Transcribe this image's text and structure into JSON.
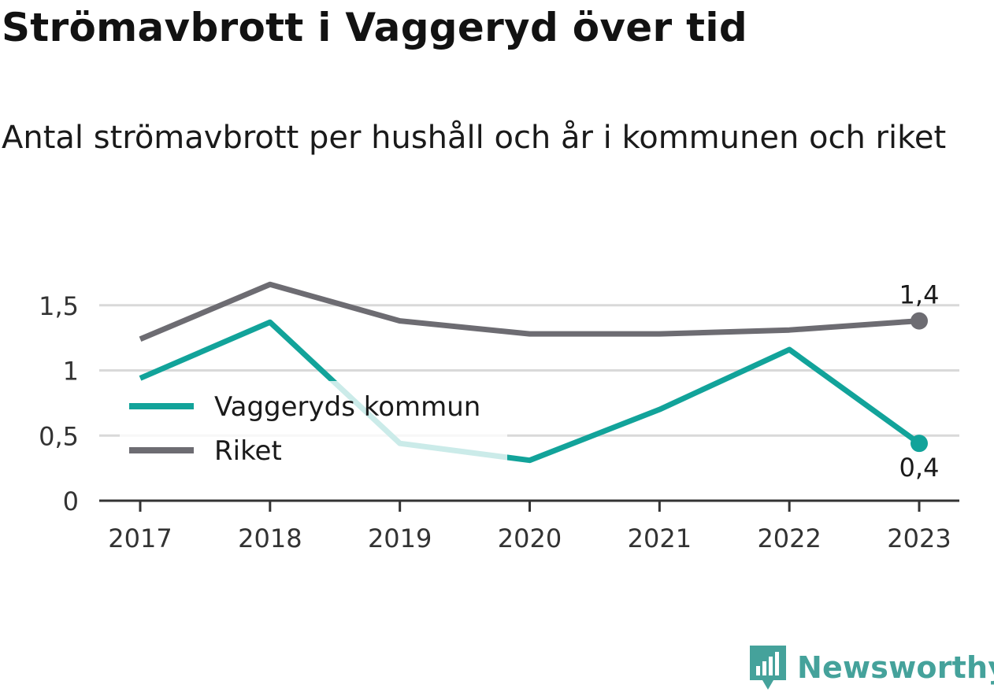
{
  "title": "Strömavbrott i Vaggeryd över tid",
  "subtitle": "Antal strömavbrott per hushåll och år i kommunen och riket",
  "brand": {
    "name": "Newsworthy",
    "icon": "newsworthy-logo-icon",
    "color": "#45a29b"
  },
  "chart_data": {
    "type": "line",
    "x": [
      "2017",
      "2018",
      "2019",
      "2020",
      "2021",
      "2022",
      "2023"
    ],
    "ylim": [
      0,
      1.8
    ],
    "yticks": [
      0,
      0.5,
      1,
      1.5
    ],
    "ytick_labels": [
      "0",
      "0,5",
      "1",
      "1,5"
    ],
    "grid": true,
    "legend_position": "left-middle",
    "series": [
      {
        "name": "Vaggeryds kommun",
        "color": "#12a39a",
        "values": [
          0.94,
          1.37,
          0.44,
          0.31,
          0.7,
          1.16,
          0.44
        ],
        "end_label": "0,4"
      },
      {
        "name": "Riket",
        "color": "#6d6c72",
        "values": [
          1.24,
          1.66,
          1.38,
          1.28,
          1.28,
          1.31,
          1.38
        ],
        "end_label": "1,4"
      }
    ]
  }
}
